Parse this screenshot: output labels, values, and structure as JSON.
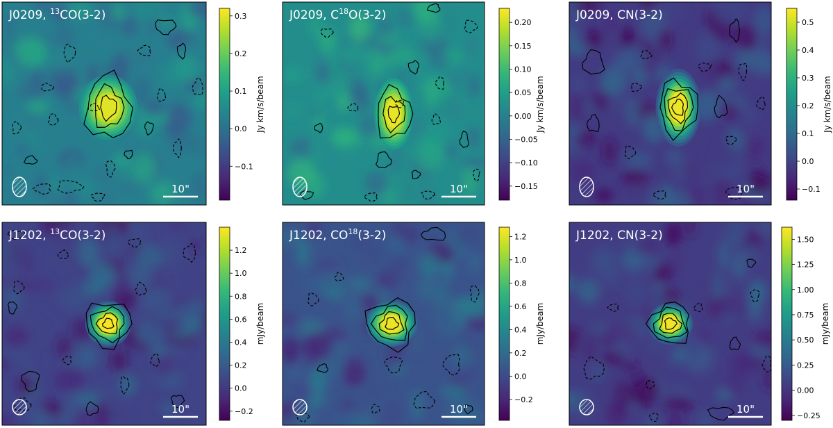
{
  "chart_data": [
    {
      "type": "heatmap",
      "title": "J0209, ¹³CO(3-2)",
      "title_parts": {
        "source": "J0209, ",
        "sup": "13",
        "rest": "CO(3-2)"
      },
      "colorbar_label": "Jy km/s/beam",
      "colorbar_range": [
        -0.19,
        0.32
      ],
      "colorbar_ticks": [
        -0.1,
        0.0,
        0.1,
        0.2,
        0.3
      ],
      "colorbar_ticklabels": [
        "−0.1",
        "0.0",
        "0.1",
        "0.2",
        "0.3"
      ],
      "background_level": 0.03,
      "scalebar_label": "10\"",
      "source_peak": 0.3,
      "colormap": "viridis"
    },
    {
      "type": "heatmap",
      "title": "J0209, C¹⁸O(3-2)",
      "title_parts": {
        "source": "J0209, C",
        "sup": "18",
        "rest": "O(3-2)"
      },
      "colorbar_label": "Jy km/s/beam",
      "colorbar_range": [
        -0.18,
        0.23
      ],
      "colorbar_ticks": [
        -0.15,
        -0.1,
        -0.05,
        0.0,
        0.05,
        0.1,
        0.15,
        0.2
      ],
      "colorbar_ticklabels": [
        "−0.15",
        "−0.10",
        "−0.05",
        "0.00",
        "0.05",
        "0.10",
        "0.15",
        "0.20"
      ],
      "background_level": 0.02,
      "scalebar_label": "10\"",
      "source_peak": 0.22,
      "colormap": "viridis"
    },
    {
      "type": "heatmap",
      "title": "J0209, CN(3-2)",
      "title_parts": {
        "source": "J0209, ",
        "sup": "",
        "rest": "CN(3-2)"
      },
      "colorbar_label": "Jy km/s/beam",
      "colorbar_range": [
        -0.14,
        0.55
      ],
      "colorbar_ticks": [
        -0.1,
        0.0,
        0.1,
        0.2,
        0.3,
        0.4,
        0.5
      ],
      "colorbar_ticklabels": [
        "−0.1",
        "0.0",
        "0.1",
        "0.2",
        "0.3",
        "0.4",
        "0.5"
      ],
      "background_level": -0.02,
      "scalebar_label": "10\"",
      "source_peak": 0.54,
      "colormap": "viridis"
    },
    {
      "type": "heatmap",
      "title": "J1202, ¹³CO(3-2)",
      "title_parts": {
        "source": "J1202, ",
        "sup": "13",
        "rest": "CO(3-2)"
      },
      "colorbar_label": "mJy/beam",
      "colorbar_range": [
        -0.28,
        1.4
      ],
      "colorbar_ticks": [
        -0.2,
        0.0,
        0.2,
        0.4,
        0.6,
        0.8,
        1.0,
        1.2
      ],
      "colorbar_ticklabels": [
        "−0.2",
        "0.0",
        "0.2",
        "0.4",
        "0.6",
        "0.8",
        "1.0",
        "1.2"
      ],
      "background_level": 0.06,
      "scalebar_label": "10\"",
      "source_peak": 1.4,
      "colormap": "viridis"
    },
    {
      "type": "heatmap",
      "title": "J1202, CO¹⁸(3-2)",
      "title_parts": {
        "source": "J1202, CO",
        "sup": "18",
        "rest": "(3-2)"
      },
      "colorbar_label": "mJy/beam",
      "colorbar_range": [
        -0.38,
        1.28
      ],
      "colorbar_ticks": [
        -0.2,
        0.0,
        0.2,
        0.4,
        0.6,
        0.8,
        1.0,
        1.2
      ],
      "colorbar_ticklabels": [
        "−0.2",
        "0.0",
        "0.2",
        "0.4",
        "0.6",
        "0.8",
        "1.0",
        "1.2"
      ],
      "background_level": 0.05,
      "scalebar_label": "10\"",
      "source_peak": 1.25,
      "colormap": "viridis"
    },
    {
      "type": "heatmap",
      "title": "J1202, CN(3-2)",
      "title_parts": {
        "source": "J1202, ",
        "sup": "",
        "rest": "CN(3-2)"
      },
      "colorbar_label": "mJy/beam",
      "colorbar_range": [
        -0.3,
        1.62
      ],
      "colorbar_ticks": [
        -0.25,
        0.0,
        0.25,
        0.5,
        0.75,
        1.0,
        1.25,
        1.5
      ],
      "colorbar_ticklabels": [
        "−0.25",
        "0.00",
        "0.25",
        "0.50",
        "0.75",
        "1.00",
        "1.25",
        "1.50"
      ],
      "background_level": 0.05,
      "scalebar_label": "10\"",
      "source_peak": 1.6,
      "colormap": "viridis"
    }
  ],
  "colors": {
    "viridis": [
      "#440154",
      "#482878",
      "#3e4989",
      "#31688e",
      "#26828e",
      "#1f9e89",
      "#35b779",
      "#6ece58",
      "#b5de2b",
      "#fde725"
    ],
    "contour": "#000000",
    "overlay_text": "#ffffff"
  }
}
